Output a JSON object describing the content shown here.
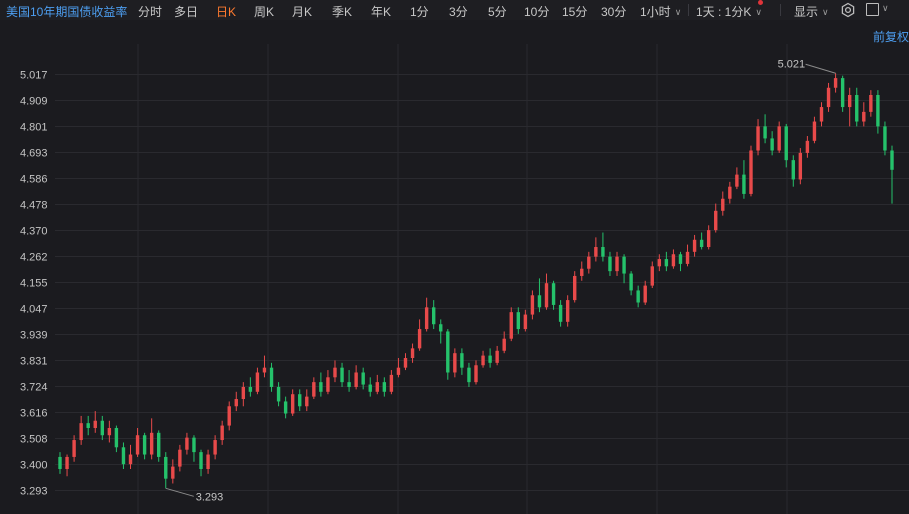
{
  "toolbar": {
    "title": "美国10年期国债收益率",
    "items": [
      "分时",
      "多日",
      "日K",
      "周K",
      "月K",
      "季K",
      "年K",
      "1分",
      "3分",
      "5分",
      "10分",
      "15分",
      "30分",
      "1小时"
    ],
    "active": "日K",
    "period_select": "1天 : 1分K",
    "display_label": "显示"
  },
  "adjust_label": "前复权",
  "colors": {
    "background": "#1b1b1f",
    "up": "#e84a4a",
    "down": "#25c26b",
    "grid": "#2a2a2f",
    "title": "#4d9ef0",
    "active": "#ff7a2f"
  },
  "chart_data": {
    "type": "candlestick",
    "y_ticks": [
      "5.017",
      "4.909",
      "4.801",
      "4.693",
      "4.586",
      "4.478",
      "4.370",
      "4.262",
      "4.155",
      "4.047",
      "3.939",
      "3.831",
      "3.724",
      "3.616",
      "3.508",
      "3.400",
      "3.293"
    ],
    "ylim": [
      3.27,
      5.06
    ],
    "annotations": {
      "high": "5.021",
      "low": "3.293"
    },
    "candles": [
      [
        3.43,
        3.38,
        3.45,
        3.36
      ],
      [
        3.38,
        3.43,
        3.44,
        3.35
      ],
      [
        3.43,
        3.5,
        3.52,
        3.41
      ],
      [
        3.5,
        3.57,
        3.6,
        3.48
      ],
      [
        3.57,
        3.55,
        3.6,
        3.52
      ],
      [
        3.55,
        3.58,
        3.62,
        3.53
      ],
      [
        3.58,
        3.52,
        3.6,
        3.5
      ],
      [
        3.52,
        3.55,
        3.58,
        3.49
      ],
      [
        3.55,
        3.47,
        3.56,
        3.45
      ],
      [
        3.47,
        3.4,
        3.49,
        3.38
      ],
      [
        3.4,
        3.44,
        3.48,
        3.38
      ],
      [
        3.44,
        3.52,
        3.55,
        3.43
      ],
      [
        3.52,
        3.44,
        3.53,
        3.42
      ],
      [
        3.44,
        3.53,
        3.59,
        3.42
      ],
      [
        3.53,
        3.43,
        3.54,
        3.41
      ],
      [
        3.43,
        3.34,
        3.45,
        3.3
      ],
      [
        3.34,
        3.39,
        3.42,
        3.32
      ],
      [
        3.39,
        3.46,
        3.48,
        3.37
      ],
      [
        3.46,
        3.51,
        3.53,
        3.44
      ],
      [
        3.51,
        3.45,
        3.52,
        3.41
      ],
      [
        3.45,
        3.38,
        3.46,
        3.35
      ],
      [
        3.38,
        3.44,
        3.46,
        3.36
      ],
      [
        3.44,
        3.5,
        3.52,
        3.42
      ],
      [
        3.5,
        3.56,
        3.58,
        3.48
      ],
      [
        3.56,
        3.64,
        3.66,
        3.54
      ],
      [
        3.64,
        3.67,
        3.7,
        3.62
      ],
      [
        3.67,
        3.72,
        3.74,
        3.64
      ],
      [
        3.72,
        3.7,
        3.76,
        3.68
      ],
      [
        3.7,
        3.78,
        3.8,
        3.69
      ],
      [
        3.78,
        3.8,
        3.85,
        3.76
      ],
      [
        3.8,
        3.72,
        3.82,
        3.7
      ],
      [
        3.72,
        3.66,
        3.74,
        3.64
      ],
      [
        3.66,
        3.61,
        3.68,
        3.59
      ],
      [
        3.61,
        3.69,
        3.71,
        3.6
      ],
      [
        3.69,
        3.64,
        3.71,
        3.62
      ],
      [
        3.64,
        3.68,
        3.71,
        3.62
      ],
      [
        3.68,
        3.74,
        3.76,
        3.67
      ],
      [
        3.74,
        3.7,
        3.78,
        3.68
      ],
      [
        3.7,
        3.76,
        3.79,
        3.69
      ],
      [
        3.76,
        3.8,
        3.83,
        3.74
      ],
      [
        3.8,
        3.74,
        3.82,
        3.72
      ],
      [
        3.74,
        3.72,
        3.79,
        3.7
      ],
      [
        3.72,
        3.78,
        3.81,
        3.71
      ],
      [
        3.78,
        3.73,
        3.8,
        3.71
      ],
      [
        3.73,
        3.7,
        3.76,
        3.68
      ],
      [
        3.7,
        3.74,
        3.77,
        3.69
      ],
      [
        3.74,
        3.7,
        3.76,
        3.68
      ],
      [
        3.7,
        3.77,
        3.79,
        3.69
      ],
      [
        3.77,
        3.8,
        3.84,
        3.76
      ],
      [
        3.8,
        3.84,
        3.86,
        3.79
      ],
      [
        3.84,
        3.88,
        3.9,
        3.82
      ],
      [
        3.88,
        3.96,
        4.0,
        3.87
      ],
      [
        3.96,
        4.05,
        4.09,
        3.95
      ],
      [
        4.05,
        3.98,
        4.08,
        3.96
      ],
      [
        3.98,
        3.95,
        4.0,
        3.9
      ],
      [
        3.95,
        3.78,
        3.96,
        3.75
      ],
      [
        3.78,
        3.86,
        3.88,
        3.76
      ],
      [
        3.86,
        3.8,
        3.88,
        3.77
      ],
      [
        3.8,
        3.74,
        3.82,
        3.72
      ],
      [
        3.74,
        3.81,
        3.83,
        3.73
      ],
      [
        3.81,
        3.85,
        3.87,
        3.8
      ],
      [
        3.85,
        3.82,
        3.88,
        3.8
      ],
      [
        3.82,
        3.87,
        3.89,
        3.81
      ],
      [
        3.87,
        3.92,
        3.95,
        3.86
      ],
      [
        3.92,
        4.03,
        4.05,
        3.91
      ],
      [
        4.03,
        3.96,
        4.05,
        3.94
      ],
      [
        3.96,
        4.02,
        4.04,
        3.95
      ],
      [
        4.02,
        4.1,
        4.12,
        4.0
      ],
      [
        4.1,
        4.05,
        4.17,
        4.03
      ],
      [
        4.05,
        4.15,
        4.19,
        4.04
      ],
      [
        4.15,
        4.06,
        4.16,
        4.04
      ],
      [
        4.06,
        3.99,
        4.08,
        3.97
      ],
      [
        3.99,
        4.08,
        4.1,
        3.97
      ],
      [
        4.08,
        4.18,
        4.2,
        4.07
      ],
      [
        4.18,
        4.21,
        4.24,
        4.16
      ],
      [
        4.21,
        4.26,
        4.28,
        4.19
      ],
      [
        4.26,
        4.3,
        4.34,
        4.24
      ],
      [
        4.3,
        4.26,
        4.36,
        4.24
      ],
      [
        4.26,
        4.2,
        4.28,
        4.18
      ],
      [
        4.2,
        4.26,
        4.28,
        4.18
      ],
      [
        4.26,
        4.19,
        4.27,
        4.15
      ],
      [
        4.19,
        4.12,
        4.2,
        4.1
      ],
      [
        4.12,
        4.07,
        4.14,
        4.05
      ],
      [
        4.07,
        4.14,
        4.16,
        4.06
      ],
      [
        4.14,
        4.22,
        4.24,
        4.13
      ],
      [
        4.22,
        4.25,
        4.27,
        4.2
      ],
      [
        4.25,
        4.22,
        4.28,
        4.2
      ],
      [
        4.22,
        4.27,
        4.29,
        4.21
      ],
      [
        4.27,
        4.23,
        4.28,
        4.2
      ],
      [
        4.23,
        4.28,
        4.31,
        4.22
      ],
      [
        4.28,
        4.33,
        4.35,
        4.26
      ],
      [
        4.33,
        4.3,
        4.36,
        4.29
      ],
      [
        4.3,
        4.37,
        4.39,
        4.29
      ],
      [
        4.37,
        4.45,
        4.48,
        4.36
      ],
      [
        4.45,
        4.5,
        4.53,
        4.43
      ],
      [
        4.5,
        4.55,
        4.57,
        4.48
      ],
      [
        4.55,
        4.6,
        4.63,
        4.54
      ],
      [
        4.6,
        4.52,
        4.66,
        4.5
      ],
      [
        4.52,
        4.7,
        4.72,
        4.51
      ],
      [
        4.7,
        4.8,
        4.83,
        4.68
      ],
      [
        4.8,
        4.75,
        4.85,
        4.73
      ],
      [
        4.75,
        4.7,
        4.78,
        4.68
      ],
      [
        4.7,
        4.8,
        4.82,
        4.69
      ],
      [
        4.8,
        4.66,
        4.81,
        4.63
      ],
      [
        4.66,
        4.58,
        4.68,
        4.55
      ],
      [
        4.58,
        4.69,
        4.71,
        4.56
      ],
      [
        4.69,
        4.74,
        4.76,
        4.67
      ],
      [
        4.74,
        4.82,
        4.84,
        4.73
      ],
      [
        4.82,
        4.88,
        4.9,
        4.8
      ],
      [
        4.88,
        4.96,
        4.98,
        4.86
      ],
      [
        4.96,
        5.0,
        5.02,
        4.94
      ],
      [
        5.0,
        4.88,
        5.01,
        4.86
      ],
      [
        4.88,
        4.93,
        4.96,
        4.8
      ],
      [
        4.93,
        4.82,
        4.96,
        4.8
      ],
      [
        4.82,
        4.86,
        4.9,
        4.8
      ],
      [
        4.86,
        4.93,
        4.95,
        4.84
      ],
      [
        4.93,
        4.8,
        4.95,
        4.77
      ],
      [
        4.8,
        4.7,
        4.82,
        4.68
      ],
      [
        4.7,
        4.62,
        4.72,
        4.48
      ]
    ]
  }
}
